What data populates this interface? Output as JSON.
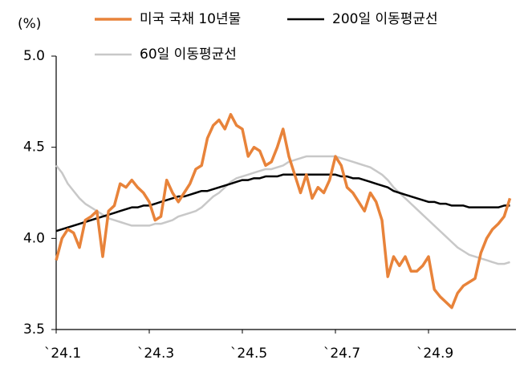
{
  "chart_data": {
    "type": "line",
    "y_label": "(%)",
    "categories": [
      "`24.1",
      null,
      null,
      null,
      null,
      null,
      null,
      null,
      null,
      null,
      null,
      null,
      null,
      null,
      null,
      null,
      "`24.3",
      null,
      null,
      null,
      null,
      null,
      null,
      null,
      null,
      null,
      null,
      null,
      null,
      null,
      null,
      null,
      "`24.5",
      null,
      null,
      null,
      null,
      null,
      null,
      null,
      null,
      null,
      null,
      null,
      null,
      null,
      null,
      null,
      "`24.7",
      null,
      null,
      null,
      null,
      null,
      null,
      null,
      null,
      null,
      null,
      null,
      null,
      null,
      null,
      null,
      "`24.9",
      null,
      null,
      null,
      null,
      null,
      null,
      null,
      null,
      null,
      null,
      null,
      null,
      null,
      null
    ],
    "series": [
      {
        "name": "미국 국채 10년물",
        "color": "#e8833a",
        "width": 3.5,
        "values": [
          3.88,
          4.0,
          4.05,
          4.03,
          3.95,
          4.1,
          4.12,
          4.15,
          3.9,
          4.15,
          4.18,
          4.3,
          4.28,
          4.32,
          4.28,
          4.25,
          4.2,
          4.1,
          4.12,
          4.32,
          4.25,
          4.2,
          4.25,
          4.3,
          4.38,
          4.4,
          4.55,
          4.62,
          4.65,
          4.6,
          4.68,
          4.62,
          4.6,
          4.45,
          4.5,
          4.48,
          4.4,
          4.42,
          4.5,
          4.6,
          4.45,
          4.35,
          4.25,
          4.35,
          4.22,
          4.28,
          4.25,
          4.32,
          4.45,
          4.4,
          4.28,
          4.25,
          4.2,
          4.15,
          4.25,
          4.2,
          4.1,
          3.79,
          3.9,
          3.85,
          3.9,
          3.82,
          3.82,
          3.85,
          3.9,
          3.72,
          3.68,
          3.65,
          3.62,
          3.7,
          3.74,
          3.76,
          3.78,
          3.92,
          4.0,
          4.05,
          4.08,
          4.12,
          4.22
        ]
      },
      {
        "name": "200일 이동평균선",
        "color": "#000000",
        "width": 2.5,
        "values": [
          4.04,
          4.05,
          4.06,
          4.07,
          4.08,
          4.09,
          4.1,
          4.11,
          4.12,
          4.13,
          4.14,
          4.15,
          4.16,
          4.17,
          4.17,
          4.18,
          4.18,
          4.19,
          4.2,
          4.21,
          4.22,
          4.23,
          4.23,
          4.24,
          4.25,
          4.26,
          4.26,
          4.27,
          4.28,
          4.29,
          4.3,
          4.31,
          4.32,
          4.32,
          4.33,
          4.33,
          4.34,
          4.34,
          4.34,
          4.35,
          4.35,
          4.35,
          4.35,
          4.35,
          4.35,
          4.35,
          4.35,
          4.35,
          4.35,
          4.34,
          4.34,
          4.33,
          4.33,
          4.32,
          4.31,
          4.3,
          4.29,
          4.28,
          4.26,
          4.25,
          4.24,
          4.23,
          4.22,
          4.21,
          4.2,
          4.2,
          4.19,
          4.19,
          4.18,
          4.18,
          4.18,
          4.17,
          4.17,
          4.17,
          4.17,
          4.17,
          4.17,
          4.18,
          4.18
        ]
      },
      {
        "name": "60일 이동평균선",
        "color": "#c8c8c8",
        "width": 2.5,
        "values": [
          4.4,
          4.36,
          4.3,
          4.26,
          4.22,
          4.19,
          4.17,
          4.15,
          4.13,
          4.11,
          4.1,
          4.09,
          4.08,
          4.07,
          4.07,
          4.07,
          4.07,
          4.08,
          4.08,
          4.09,
          4.1,
          4.12,
          4.13,
          4.14,
          4.15,
          4.17,
          4.2,
          4.23,
          4.25,
          4.28,
          4.31,
          4.33,
          4.34,
          4.35,
          4.36,
          4.37,
          4.38,
          4.38,
          4.39,
          4.4,
          4.42,
          4.43,
          4.44,
          4.45,
          4.45,
          4.45,
          4.45,
          4.45,
          4.45,
          4.44,
          4.43,
          4.42,
          4.41,
          4.4,
          4.39,
          4.37,
          4.35,
          4.32,
          4.28,
          4.25,
          4.22,
          4.19,
          4.16,
          4.13,
          4.1,
          4.07,
          4.04,
          4.01,
          3.98,
          3.95,
          3.93,
          3.91,
          3.9,
          3.89,
          3.88,
          3.87,
          3.86,
          3.86,
          3.87
        ]
      }
    ],
    "ylim": [
      3.5,
      5.0
    ],
    "yticks": [
      {
        "value": 5,
        "label": "5.0"
      },
      4.5,
      {
        "value": 4,
        "label": "4.0"
      },
      3.5
    ],
    "legend": "top",
    "grid": false
  }
}
